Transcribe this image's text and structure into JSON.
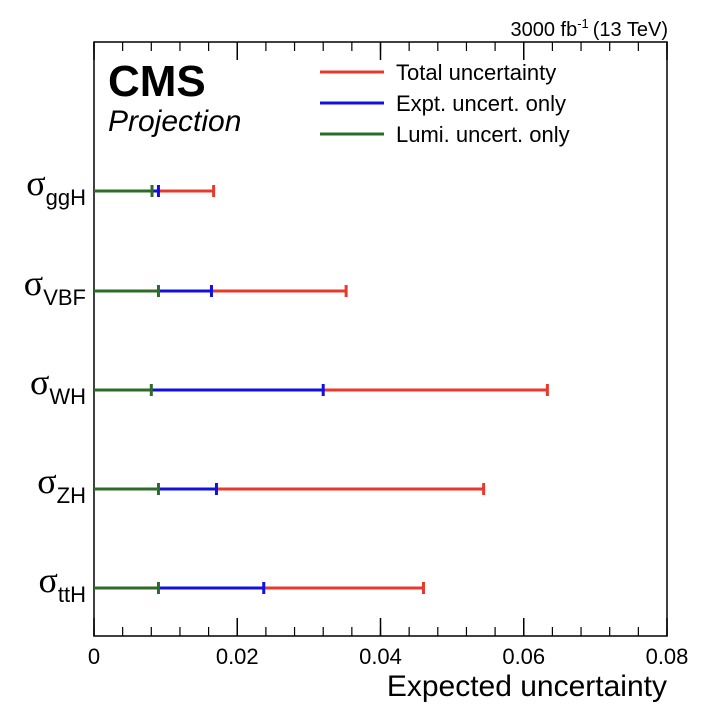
{
  "header": {
    "cms_label": "CMS",
    "projection_label": "Projection",
    "lumi_value": "3000 fb",
    "lumi_superscript": "-1",
    "energy": "(13 TeV)"
  },
  "chart_data": {
    "type": "errorbar",
    "xlabel": "Expected uncertainty",
    "xlim": [
      0,
      0.08
    ],
    "x_ticks": [
      "0",
      "0.02",
      "0.04",
      "0.06",
      "0.08"
    ],
    "x_tick_values": [
      0,
      0.02,
      0.04,
      0.06,
      0.08
    ],
    "categories": [
      {
        "symbol": "σ",
        "subscript": "ggH"
      },
      {
        "symbol": "σ",
        "subscript": "VBF"
      },
      {
        "symbol": "σ",
        "subscript": "WH"
      },
      {
        "symbol": "σ",
        "subscript": "ZH"
      },
      {
        "symbol": "σ",
        "subscript": "ttH"
      }
    ],
    "series": [
      {
        "name": "Total uncertainty",
        "color": "#e8392b",
        "values": [
          0.0167,
          0.0352,
          0.0633,
          0.0544,
          0.046
        ]
      },
      {
        "name": "Expt. uncert. only",
        "color": "#1010e0",
        "values": [
          0.009,
          0.0164,
          0.032,
          0.0171,
          0.0237
        ]
      },
      {
        "name": "Lumi. uncert. only",
        "color": "#2e6b27",
        "values": [
          0.0081,
          0.009,
          0.008,
          0.009,
          0.009
        ]
      }
    ],
    "legend_position": "top-right",
    "grid": false
  }
}
